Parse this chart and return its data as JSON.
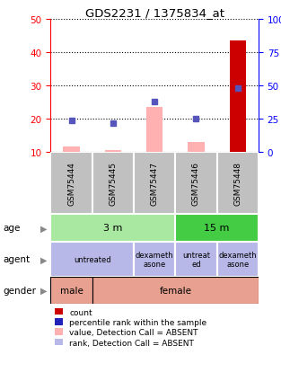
{
  "title": "GDS2231 / 1375834_at",
  "samples": [
    "GSM75444",
    "GSM75445",
    "GSM75447",
    "GSM75446",
    "GSM75448"
  ],
  "left_ylim": [
    10,
    50
  ],
  "left_yticks": [
    10,
    20,
    30,
    40,
    50
  ],
  "right_ylim": [
    0,
    100
  ],
  "right_yticks": [
    0,
    25,
    50,
    75,
    100
  ],
  "right_yticklabels": [
    "0",
    "25",
    "50",
    "75",
    "100%"
  ],
  "pink_bars": [
    11.5,
    10.5,
    23.5,
    13.0,
    null
  ],
  "red_bar": [
    null,
    null,
    null,
    null,
    43.5
  ],
  "blue_dots_left": [
    19.5,
    18.5,
    25.0,
    20.0,
    29.0
  ],
  "red_bar_color": "#cc0000",
  "pink_bar_color": "#ffb0b0",
  "blue_dot_color": "#5555bb",
  "age_colors": {
    "3m": "#a8e8a0",
    "15m": "#44cc44"
  },
  "agent_color": "#b8b8e8",
  "gender_color": "#e8a090",
  "sample_bg": "#c0c0c0",
  "legend_items": [
    {
      "color": "#cc0000",
      "label": "count"
    },
    {
      "color": "#2222bb",
      "label": "percentile rank within the sample"
    },
    {
      "color": "#ffb0b0",
      "label": "value, Detection Call = ABSENT"
    },
    {
      "color": "#b8b8e8",
      "label": "rank, Detection Call = ABSENT"
    }
  ]
}
